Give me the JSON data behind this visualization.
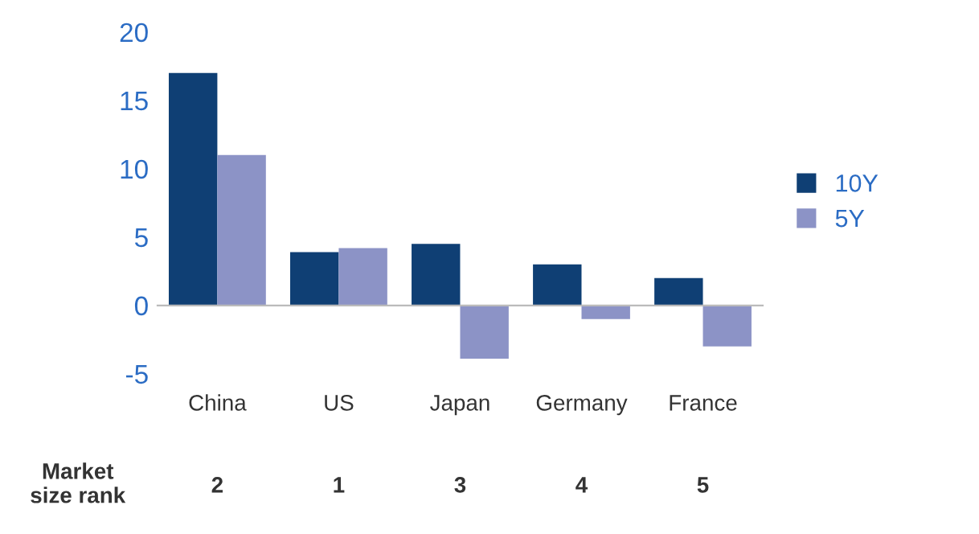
{
  "chart_data": {
    "type": "bar",
    "categories": [
      "China",
      "US",
      "Japan",
      "Germany",
      "France"
    ],
    "series": [
      {
        "name": "10Y",
        "color": "#0f3f74",
        "values": [
          17.0,
          3.9,
          4.5,
          3.0,
          2.0
        ]
      },
      {
        "name": "5Y",
        "color": "#8c93c6",
        "values": [
          11.0,
          4.2,
          -3.9,
          -1.0,
          -3.0
        ]
      }
    ],
    "ylim": [
      -5,
      20
    ],
    "ref_lines": [
      {
        "axis": "y",
        "value": 0,
        "color": "#bbbbbb"
      }
    ],
    "yticks": [
      -5,
      0,
      5,
      10,
      15,
      20
    ],
    "grid": false,
    "legend": "right",
    "annotations": [
      "Market\nsize rank",
      "2",
      "1",
      "3",
      "4",
      "5"
    ]
  }
}
